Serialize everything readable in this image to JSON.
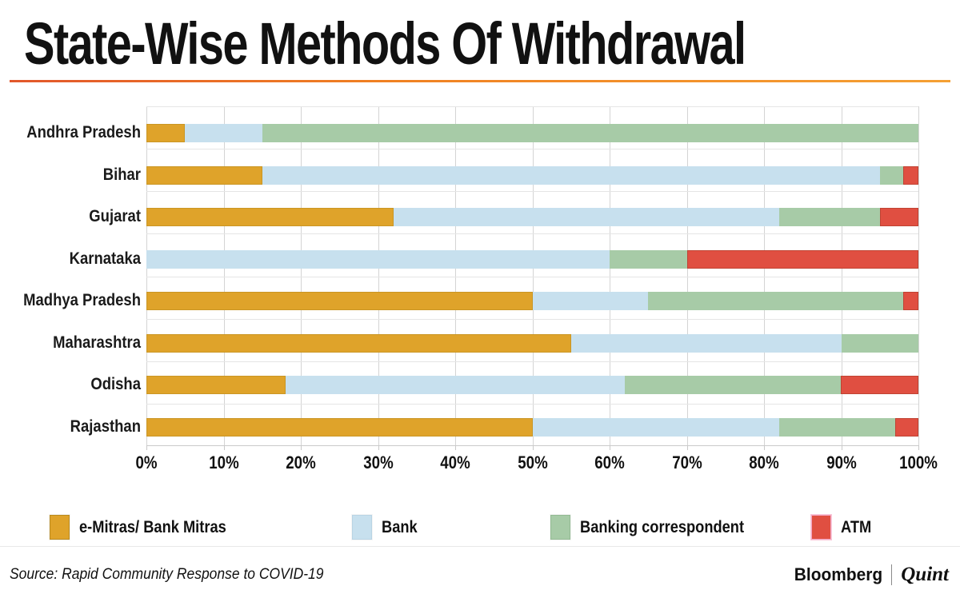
{
  "title": "State-Wise Methods Of Withdrawal",
  "source_note": "Source: Rapid Community Response to COVID-19",
  "branding": {
    "left_logo": "Bloomberg",
    "separator": "|",
    "right_logo": "Quint"
  },
  "colors": {
    "accent_rule": "#f08122",
    "grid": "#d4d4d4",
    "text": "#111111"
  },
  "chart_data": {
    "type": "bar",
    "orientation": "horizontal",
    "stacked": true,
    "title": "State-Wise Methods Of Withdrawal",
    "categories": [
      "Andhra Pradesh",
      "Bihar",
      "Gujarat",
      "Karnataka",
      "Madhya Pradesh",
      "Maharashtra",
      "Odisha",
      "Rajasthan"
    ],
    "series": [
      {
        "name": "e-Mitras/ Bank Mitras",
        "color": "#dfa32a",
        "values": [
          5,
          15,
          32,
          0,
          50,
          55,
          18,
          50
        ]
      },
      {
        "name": "Bank",
        "color": "#c7e0ee",
        "values": [
          10,
          80,
          50,
          60,
          15,
          35,
          44,
          32
        ]
      },
      {
        "name": "Banking correspondent",
        "color": "#a7cba7",
        "values": [
          85,
          3,
          13,
          10,
          33,
          10,
          28,
          15
        ]
      },
      {
        "name": "ATM",
        "color": "#e04f41",
        "values": [
          0,
          2,
          5,
          30,
          2,
          0,
          10,
          3
        ]
      }
    ],
    "xlim": [
      0,
      100
    ],
    "x_tick_labels": [
      "0%",
      "10%",
      "20%",
      "30%",
      "40%",
      "50%",
      "60%",
      "70%",
      "80%",
      "90%",
      "100%"
    ],
    "grid": true,
    "legend_position": "bottom",
    "legend_x_positions": [
      62,
      440,
      688,
      1014
    ],
    "unit": "percent"
  }
}
